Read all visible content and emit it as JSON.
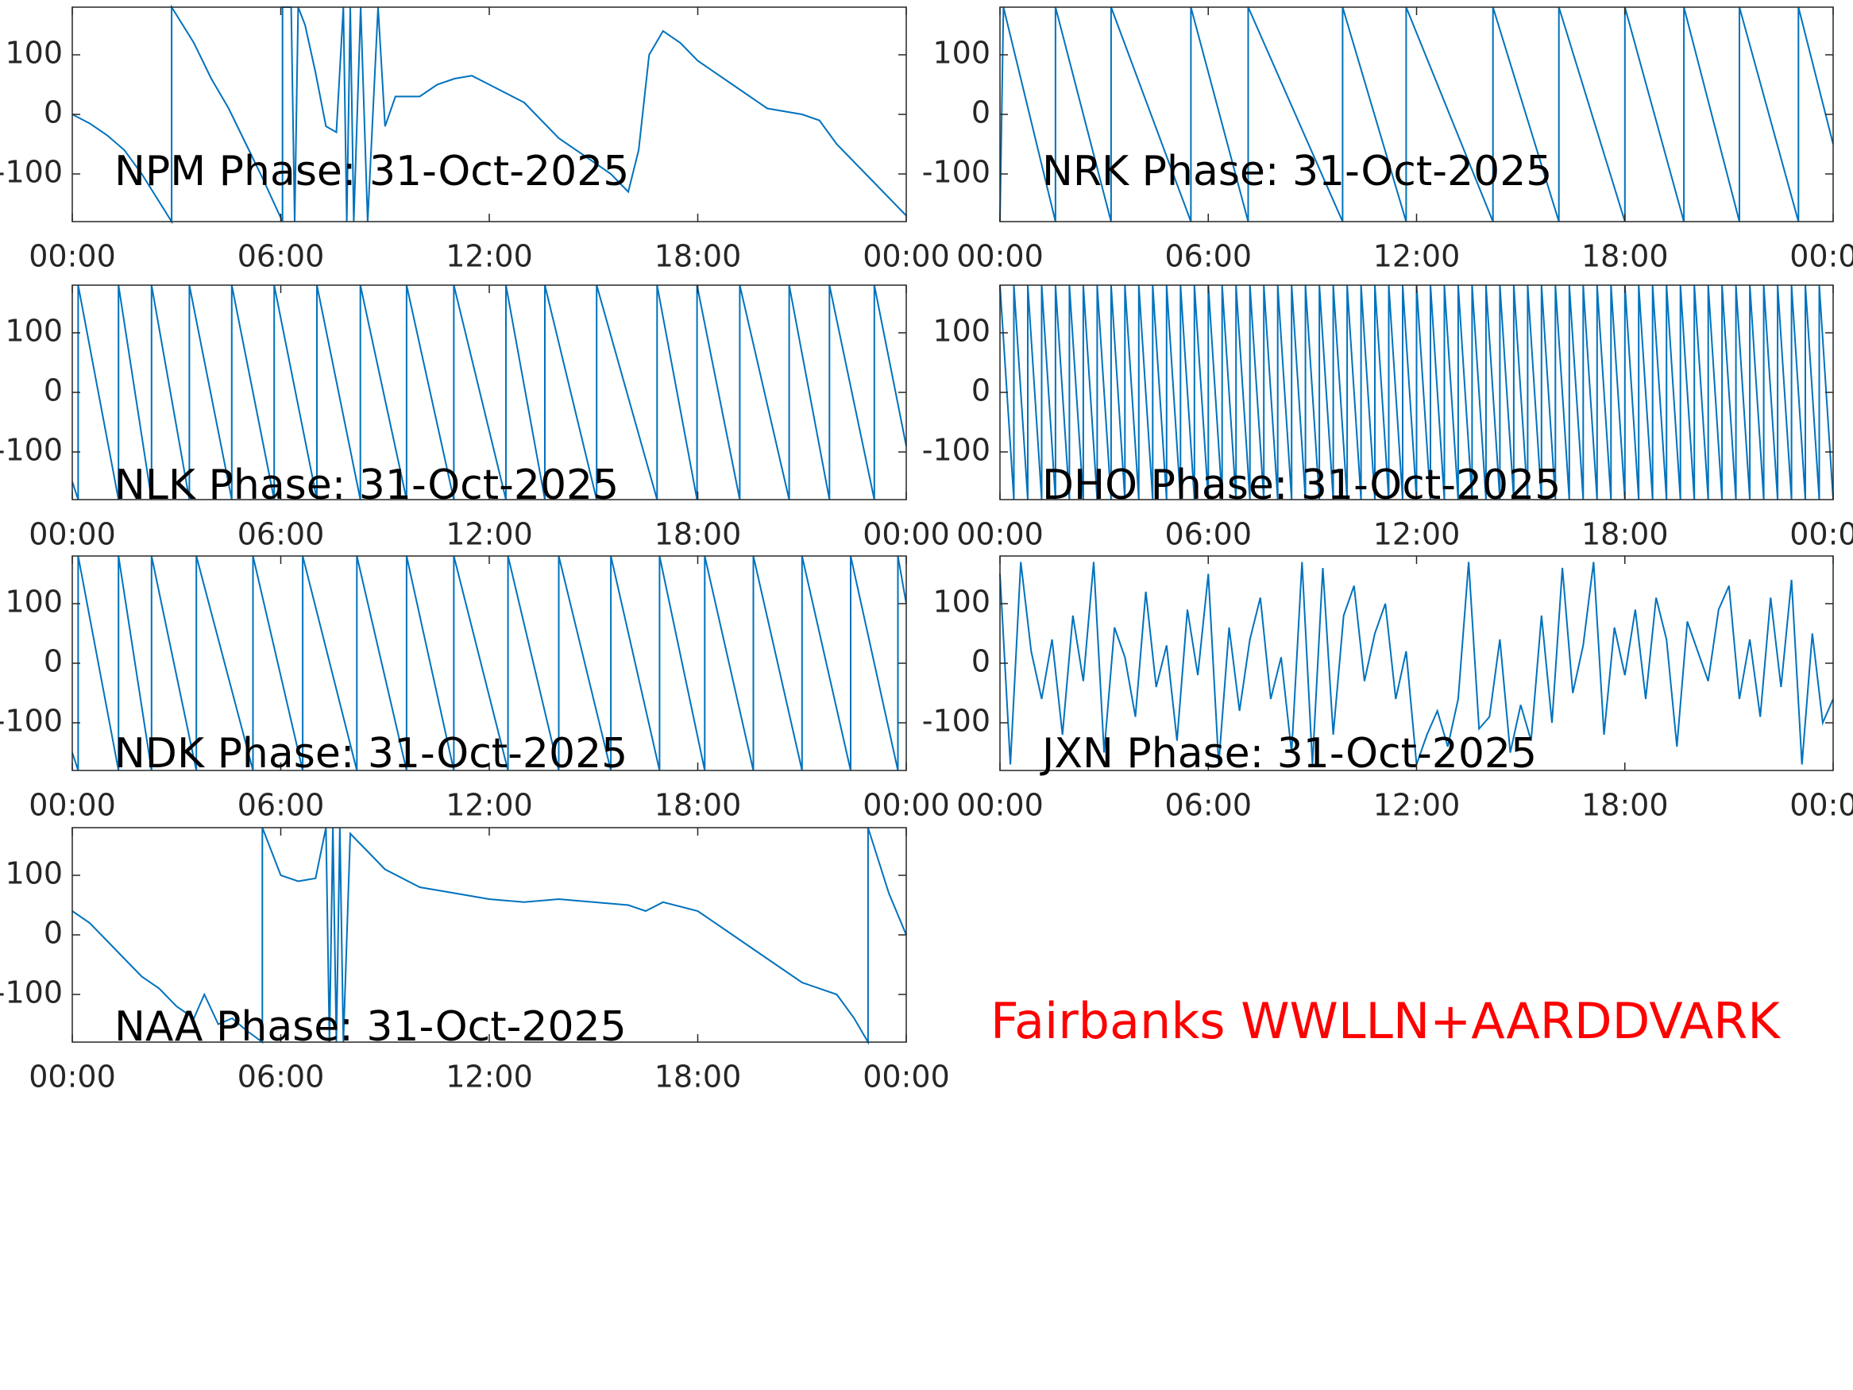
{
  "chart_data": [
    {
      "type": "line",
      "title": "NPM Phase: 31-Oct-2025",
      "color": "#0072bd",
      "x": [
        0,
        0.5,
        1,
        1.5,
        2,
        2.86,
        2.86,
        3.5,
        4,
        4.5,
        5,
        5.5,
        6.05,
        6.05,
        6.3,
        6.4,
        6.5,
        6.7,
        7,
        7.3,
        7.6,
        7.8,
        7.9,
        8,
        8.1,
        8.3,
        8.5,
        8.8,
        9,
        9.3,
        10,
        10.5,
        11,
        11.5,
        12,
        13,
        14,
        15,
        15.5,
        16,
        16.3,
        16.6,
        17,
        17.5,
        18,
        19,
        20,
        21,
        21.5,
        22,
        23,
        24
      ],
      "values": [
        0,
        -15,
        -35,
        -60,
        -100,
        -180,
        180,
        120,
        60,
        10,
        -50,
        -110,
        -180,
        180,
        180,
        -180,
        180,
        150,
        70,
        -20,
        -30,
        180,
        -180,
        180,
        -180,
        180,
        -180,
        180,
        -20,
        30,
        30,
        50,
        60,
        65,
        50,
        20,
        -40,
        -80,
        -100,
        -130,
        -60,
        100,
        140,
        120,
        90,
        50,
        10,
        0,
        -10,
        -50,
        -110,
        -170
      ],
      "xlim": [
        0,
        24
      ],
      "xticks": [
        {
          "value": 0,
          "label": "00:00"
        },
        {
          "value": 6,
          "label": "06:00"
        },
        {
          "value": 12,
          "label": "12:00"
        },
        {
          "value": 18,
          "label": "18:00"
        },
        {
          "value": 24,
          "label": "00:00"
        }
      ],
      "ylim": [
        -180,
        180
      ],
      "yticks": [
        -100,
        0,
        100
      ]
    },
    {
      "type": "line",
      "title": "NRK Phase: 31-Oct-2025",
      "color": "#0072bd",
      "x": [
        0,
        0.1,
        1.6,
        1.6,
        3.2,
        3.2,
        5.5,
        5.5,
        7.15,
        7.15,
        9.87,
        9.87,
        11.7,
        11.7,
        14.2,
        14.2,
        16.1,
        16.1,
        18,
        18,
        19.7,
        19.7,
        21.3,
        21.3,
        23,
        23,
        24
      ],
      "values": [
        -180,
        180,
        -180,
        180,
        -180,
        180,
        -180,
        180,
        -180,
        180,
        -180,
        180,
        -180,
        180,
        -180,
        180,
        -180,
        180,
        -180,
        180,
        -180,
        180,
        -180,
        180,
        -180,
        180,
        -50
      ],
      "xlim": [
        0,
        24
      ],
      "xticks": [
        {
          "value": 0,
          "label": "00:00"
        },
        {
          "value": 6,
          "label": "06:00"
        },
        {
          "value": 12,
          "label": "12:00"
        },
        {
          "value": 18,
          "label": "18:00"
        },
        {
          "value": 24,
          "label": "00:00"
        }
      ],
      "ylim": [
        -180,
        180
      ],
      "yticks": [
        -100,
        0,
        100
      ]
    },
    {
      "type": "line",
      "title": "NLK Phase: 31-Oct-2025",
      "color": "#0072bd",
      "x": [
        0,
        0.17,
        0.17,
        1.33,
        1.33,
        2.28,
        2.28,
        3.37,
        3.37,
        4.59,
        4.59,
        5.81,
        5.81,
        7.04,
        7.04,
        8.29,
        8.29,
        9.62,
        9.62,
        10.98,
        10.98,
        12.48,
        12.48,
        13.6,
        13.6,
        15.09,
        15.09,
        16.83,
        16.83,
        17.98,
        17.98,
        19.21,
        19.21,
        20.63,
        20.63,
        21.79,
        21.79,
        23.08,
        23.08,
        24
      ],
      "values": [
        -150,
        -180,
        180,
        -180,
        180,
        -180,
        180,
        -180,
        180,
        -180,
        180,
        -180,
        180,
        -180,
        180,
        -180,
        180,
        -180,
        180,
        -180,
        180,
        -180,
        180,
        -180,
        180,
        -180,
        180,
        -180,
        180,
        -180,
        180,
        -180,
        180,
        -180,
        180,
        -180,
        180,
        -180,
        180,
        -90
      ],
      "xlim": [
        0,
        24
      ],
      "xticks": [
        {
          "value": 0,
          "label": "00:00"
        },
        {
          "value": 6,
          "label": "06:00"
        },
        {
          "value": 12,
          "label": "12:00"
        },
        {
          "value": 18,
          "label": "18:00"
        },
        {
          "value": 24,
          "label": "00:00"
        }
      ],
      "ylim": [
        -180,
        180
      ],
      "yticks": [
        -100,
        0,
        100
      ]
    },
    {
      "type": "line",
      "title": "DHO Phase: 31-Oct-2025",
      "color": "#0072bd",
      "x": [
        0,
        0.4,
        0.4,
        0.8,
        0.8,
        1.2,
        1.2,
        1.6,
        1.6,
        2,
        2,
        2.4,
        2.4,
        2.8,
        2.8,
        3.2,
        3.2,
        3.6,
        3.6,
        4,
        4,
        4.4,
        4.4,
        4.8,
        4.8,
        5.2,
        5.2,
        5.6,
        5.6,
        6,
        6,
        6.4,
        6.4,
        6.8,
        6.8,
        7.2,
        7.2,
        7.6,
        7.6,
        8,
        8,
        8.4,
        8.4,
        8.8,
        8.8,
        9.2,
        9.2,
        9.6,
        9.6,
        10,
        10,
        10.4,
        10.4,
        10.8,
        10.8,
        11.2,
        11.2,
        11.6,
        11.6,
        12,
        12,
        12.4,
        12.4,
        12.8,
        12.8,
        13.2,
        13.2,
        13.6,
        13.6,
        14,
        14,
        14.4,
        14.4,
        14.8,
        14.8,
        15.2,
        15.2,
        15.6,
        15.6,
        16,
        16,
        16.4,
        16.4,
        16.8,
        16.8,
        17.2,
        17.2,
        17.6,
        17.6,
        18,
        18,
        18.4,
        18.4,
        18.8,
        18.8,
        19.2,
        19.2,
        19.6,
        19.6,
        20,
        20,
        20.4,
        20.4,
        20.8,
        20.8,
        21.2,
        21.2,
        21.6,
        21.6,
        22,
        22,
        22.4,
        22.4,
        22.8,
        22.8,
        23.2,
        23.2,
        23.6,
        23.6,
        24
      ],
      "values": [
        180,
        -180,
        180,
        -180,
        180,
        -180,
        180,
        -180,
        180,
        -180,
        180,
        -180,
        180,
        -180,
        180,
        -180,
        180,
        -180,
        180,
        -180,
        180,
        -180,
        180,
        -180,
        180,
        -180,
        180,
        -180,
        180,
        -180,
        180,
        -180,
        180,
        -180,
        180,
        -180,
        180,
        -180,
        180,
        -180,
        180,
        -180,
        180,
        -180,
        180,
        -180,
        180,
        -180,
        180,
        -180,
        180,
        -180,
        180,
        -180,
        180,
        -180,
        180,
        -180,
        180,
        -180,
        180,
        -180,
        180,
        -180,
        180,
        -180,
        180,
        -180,
        180,
        -180,
        180,
        -180,
        180,
        -180,
        180,
        -180,
        180,
        -180,
        180,
        -180,
        180,
        -180,
        180,
        -180,
        180,
        -180,
        180,
        -180,
        180,
        -180,
        180,
        -180,
        180,
        -180,
        180,
        -180,
        180,
        -180,
        180,
        -180,
        180,
        -180,
        180,
        -180,
        180,
        -180,
        180,
        -180,
        180,
        -180,
        180,
        -180,
        180,
        -180,
        180,
        -180,
        180,
        -180,
        180,
        -180
      ],
      "xlim": [
        0,
        24
      ],
      "xticks": [
        {
          "value": 0,
          "label": "00:00"
        },
        {
          "value": 6,
          "label": "06:00"
        },
        {
          "value": 12,
          "label": "12:00"
        },
        {
          "value": 18,
          "label": "18:00"
        },
        {
          "value": 24,
          "label": "00:00"
        }
      ],
      "ylim": [
        -180,
        180
      ],
      "yticks": [
        -100,
        0,
        100
      ]
    },
    {
      "type": "line",
      "title": "NDK Phase: 31-Oct-2025",
      "color": "#0072bd",
      "x": [
        0,
        0.17,
        0.17,
        1.33,
        1.33,
        2.28,
        2.28,
        3.57,
        3.57,
        5.2,
        5.2,
        6.63,
        6.63,
        8.19,
        8.19,
        9.62,
        9.62,
        10.98,
        10.98,
        12.54,
        12.54,
        14,
        14,
        15.5,
        15.5,
        16.9,
        16.9,
        18.2,
        18.2,
        19.6,
        19.6,
        21,
        21,
        22.4,
        22.4,
        23.76,
        23.76,
        24
      ],
      "values": [
        -150,
        -180,
        180,
        -180,
        180,
        -180,
        180,
        -180,
        180,
        -180,
        180,
        -180,
        180,
        -180,
        180,
        -180,
        180,
        -180,
        180,
        -180,
        180,
        -180,
        180,
        -180,
        180,
        -180,
        180,
        -180,
        180,
        -180,
        180,
        -180,
        180,
        -180,
        180,
        -180,
        180,
        100
      ],
      "xlim": [
        0,
        24
      ],
      "xticks": [
        {
          "value": 0,
          "label": "00:00"
        },
        {
          "value": 6,
          "label": "06:00"
        },
        {
          "value": 12,
          "label": "12:00"
        },
        {
          "value": 18,
          "label": "18:00"
        },
        {
          "value": 24,
          "label": "00:00"
        }
      ],
      "ylim": [
        -180,
        180
      ],
      "yticks": [
        -100,
        0,
        100
      ]
    },
    {
      "type": "line",
      "title": "JXN Phase: 31-Oct-2025",
      "color": "#0072bd",
      "x": [
        0,
        0.3,
        0.6,
        0.9,
        1.2,
        1.5,
        1.8,
        2.1,
        2.4,
        2.7,
        3,
        3.3,
        3.6,
        3.9,
        4.2,
        4.5,
        4.8,
        5.1,
        5.4,
        5.7,
        6,
        6.3,
        6.6,
        6.9,
        7.2,
        7.5,
        7.8,
        8.1,
        8.4,
        8.7,
        9,
        9.3,
        9.6,
        9.9,
        10.2,
        10.5,
        10.8,
        11.1,
        11.4,
        11.7,
        12,
        12.3,
        12.6,
        12.9,
        13.2,
        13.5,
        13.8,
        14.1,
        14.4,
        14.7,
        15,
        15.3,
        15.6,
        15.9,
        16.2,
        16.5,
        16.8,
        17.1,
        17.4,
        17.7,
        18,
        18.3,
        18.6,
        18.9,
        19.2,
        19.5,
        19.8,
        20.1,
        20.4,
        20.7,
        21,
        21.3,
        21.6,
        21.9,
        22.2,
        22.5,
        22.8,
        23.1,
        23.4,
        23.7,
        24
      ],
      "values": [
        150,
        -170,
        170,
        20,
        -60,
        40,
        -120,
        80,
        -30,
        170,
        -150,
        60,
        10,
        -90,
        120,
        -40,
        30,
        -130,
        90,
        -20,
        150,
        -170,
        60,
        -80,
        40,
        110,
        -60,
        10,
        -150,
        170,
        -170,
        160,
        -120,
        80,
        130,
        -30,
        50,
        100,
        -60,
        20,
        -170,
        -120,
        -80,
        -140,
        -60,
        170,
        -110,
        -90,
        40,
        -150,
        -70,
        -130,
        80,
        -100,
        160,
        -50,
        30,
        170,
        -120,
        60,
        -20,
        90,
        -60,
        110,
        40,
        -140,
        70,
        20,
        -30,
        90,
        130,
        -60,
        40,
        -90,
        110,
        -40,
        140,
        -170,
        50,
        -100,
        -60
      ],
      "xlim": [
        0,
        24
      ],
      "xticks": [
        {
          "value": 0,
          "label": "00:00"
        },
        {
          "value": 6,
          "label": "06:00"
        },
        {
          "value": 12,
          "label": "12:00"
        },
        {
          "value": 18,
          "label": "18:00"
        },
        {
          "value": 24,
          "label": "00:00"
        }
      ],
      "ylim": [
        -180,
        180
      ],
      "yticks": [
        -100,
        0,
        100
      ]
    },
    {
      "type": "line",
      "title": "NAA Phase: 31-Oct-2025",
      "color": "#0072bd",
      "x": [
        0,
        0.5,
        1,
        1.5,
        2,
        2.5,
        3,
        3.5,
        3.8,
        4.2,
        4.6,
        5,
        5.47,
        5.47,
        6,
        6.5,
        7,
        7.3,
        7.4,
        7.5,
        7.6,
        7.7,
        7.8,
        8,
        8.5,
        9,
        10,
        11,
        12,
        13,
        14,
        15,
        16,
        16.5,
        17,
        18,
        19,
        20,
        21,
        22,
        22.5,
        22.9,
        22.9,
        23.5,
        24
      ],
      "values": [
        40,
        20,
        -10,
        -40,
        -70,
        -90,
        -120,
        -140,
        -100,
        -150,
        -140,
        -160,
        -180,
        180,
        100,
        90,
        95,
        180,
        -180,
        180,
        -180,
        180,
        -180,
        170,
        140,
        110,
        80,
        70,
        60,
        55,
        60,
        55,
        50,
        40,
        55,
        40,
        0,
        -40,
        -80,
        -100,
        -140,
        -180,
        180,
        70,
        0
      ],
      "xlim": [
        0,
        24
      ],
      "xticks": [
        {
          "value": 0,
          "label": "00:00"
        },
        {
          "value": 6,
          "label": "06:00"
        },
        {
          "value": 12,
          "label": "12:00"
        },
        {
          "value": 18,
          "label": "18:00"
        },
        {
          "value": 24,
          "label": "00:00"
        }
      ],
      "ylim": [
        -180,
        180
      ],
      "yticks": [
        -100,
        0,
        100
      ]
    }
  ],
  "caption": "Fairbanks WWLLN+AARDDVARK",
  "caption_color": "#ff0000"
}
